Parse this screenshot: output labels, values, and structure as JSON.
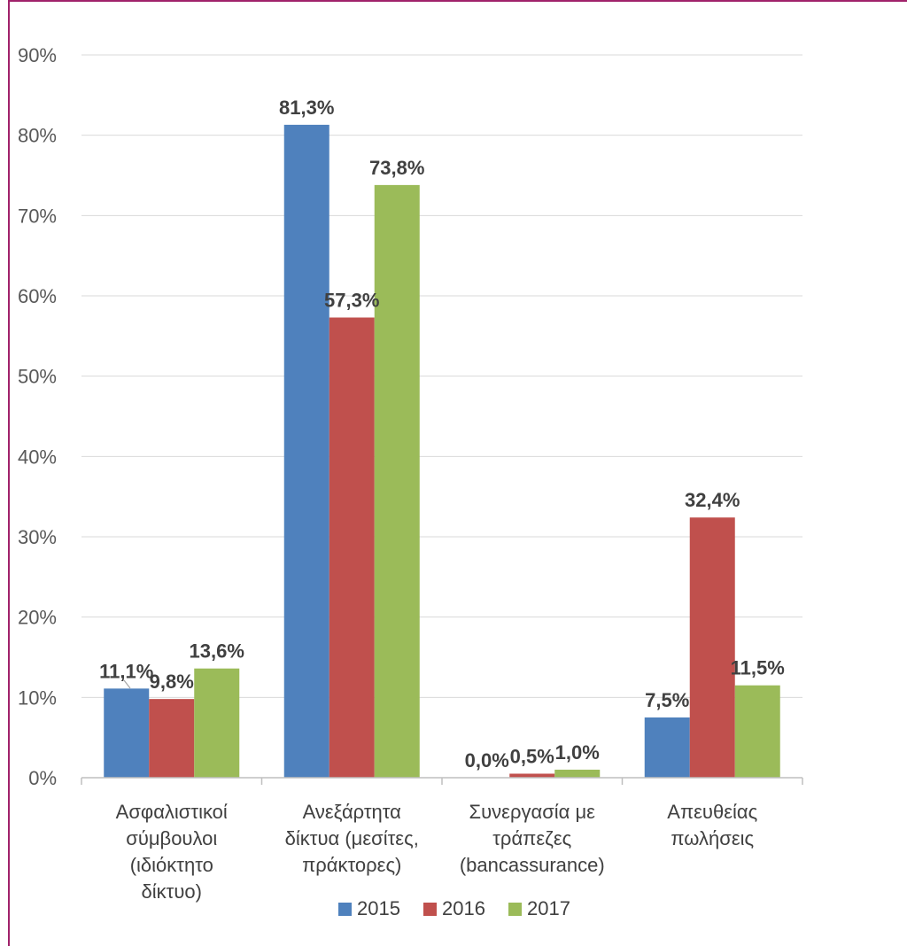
{
  "chart_data": {
    "type": "bar",
    "categories": [
      [
        "Ασφαλιστικοί",
        "σύμβουλοι",
        "(ιδιόκτητο",
        "δίκτυο)"
      ],
      [
        "Ανεξάρτητα",
        "δίκτυα (μεσίτες,",
        "πράκτορες)"
      ],
      [
        "Συνεργασία με",
        "τράπεζες",
        "(bancassurance)"
      ],
      [
        "Απευθείας",
        "πωλήσεις"
      ]
    ],
    "series": [
      {
        "name": "2015",
        "color": "#4f81bd",
        "values": [
          11.1,
          81.3,
          0.0,
          7.5
        ],
        "labels": [
          "11,1%",
          "81,3%",
          "0,0%",
          "7,5%"
        ]
      },
      {
        "name": "2016",
        "color": "#c0504d",
        "values": [
          9.8,
          57.3,
          0.5,
          32.4
        ],
        "labels": [
          "9,8%",
          "57,3%",
          "0,5%",
          "32,4%"
        ]
      },
      {
        "name": "2017",
        "color": "#9bbb59",
        "values": [
          13.6,
          73.8,
          1.0,
          11.5
        ],
        "labels": [
          "13,6%",
          "73,8%",
          "1,0%",
          "11,5%"
        ]
      }
    ],
    "y_ticks": [
      "0%",
      "10%",
      "20%",
      "30%",
      "40%",
      "50%",
      "60%",
      "70%",
      "80%",
      "90%"
    ],
    "ylim": [
      0,
      90
    ],
    "grid": true,
    "legend_position": "bottom"
  }
}
